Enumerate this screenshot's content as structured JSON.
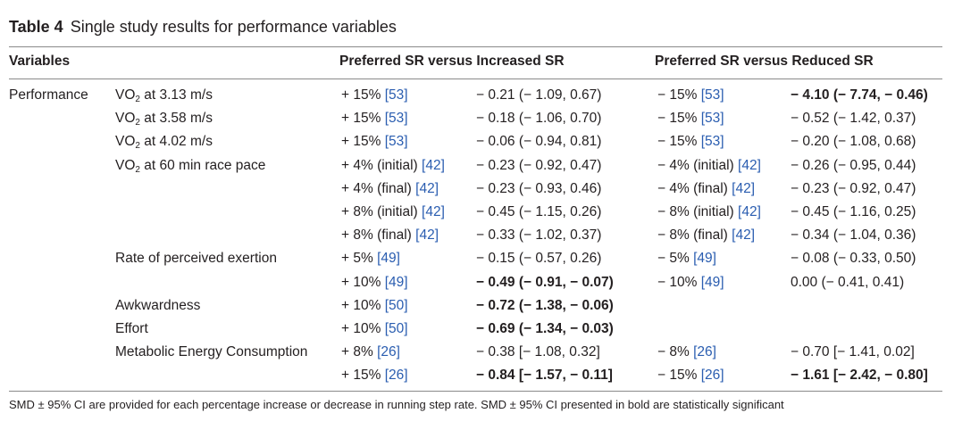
{
  "caption": {
    "label": "Table 4",
    "title": "Single study results for performance variables"
  },
  "headers": {
    "variables": "Variables",
    "group_increased": "Preferred SR versus Increased SR",
    "group_reduced": "Preferred SR versus Reduced SR"
  },
  "category": "Performance",
  "rows": [
    {
      "var_main": "VO",
      "var_sub": "2",
      "var_rest": " at 3.13 m/s",
      "inc_pct": "+ 15% ",
      "inc_ref": "[53]",
      "inc_val": "− 0.21 (− 1.09, 0.67)",
      "inc_bold": false,
      "red_pct": "− 15% ",
      "red_ref": "[53]",
      "red_val": "− 4.10 (− 7.74, − 0.46)",
      "red_bold": true
    },
    {
      "var_main": "VO",
      "var_sub": "2",
      "var_rest": " at 3.58 m/s",
      "inc_pct": "+ 15% ",
      "inc_ref": "[53]",
      "inc_val": "− 0.18 (− 1.06, 0.70)",
      "inc_bold": false,
      "red_pct": "− 15% ",
      "red_ref": "[53]",
      "red_val": "− 0.52 (− 1.42, 0.37)",
      "red_bold": false
    },
    {
      "var_main": "VO",
      "var_sub": "2",
      "var_rest": " at 4.02 m/s",
      "inc_pct": "+ 15% ",
      "inc_ref": "[53]",
      "inc_val": "− 0.06 (− 0.94, 0.81)",
      "inc_bold": false,
      "red_pct": "− 15% ",
      "red_ref": "[53]",
      "red_val": "− 0.20 (− 1.08, 0.68)",
      "red_bold": false
    },
    {
      "var_main": "VO",
      "var_sub": "2",
      "var_rest": " at 60 min race pace",
      "inc_pct": "+ 4% (initial) ",
      "inc_ref": "[42]",
      "inc_val": "− 0.23 (− 0.92, 0.47)",
      "inc_bold": false,
      "red_pct": "− 4% (initial) ",
      "red_ref": "[42]",
      "red_val": "− 0.26 (− 0.95, 0.44)",
      "red_bold": false
    },
    {
      "var_main": "",
      "var_sub": "",
      "var_rest": "",
      "inc_pct": "+ 4% (final) ",
      "inc_ref": "[42]",
      "inc_val": "− 0.23 (− 0.93, 0.46)",
      "inc_bold": false,
      "red_pct": "− 4% (final) ",
      "red_ref": "[42]",
      "red_val": "− 0.23 (− 0.92, 0.47)",
      "red_bold": false
    },
    {
      "var_main": "",
      "var_sub": "",
      "var_rest": "",
      "inc_pct": "+ 8% (initial) ",
      "inc_ref": "[42]",
      "inc_val": "− 0.45 (− 1.15, 0.26)",
      "inc_bold": false,
      "red_pct": "− 8% (initial) ",
      "red_ref": "[42]",
      "red_val": "− 0.45 (− 1.16, 0.25)",
      "red_bold": false
    },
    {
      "var_main": "",
      "var_sub": "",
      "var_rest": "",
      "inc_pct": "+ 8% (final) ",
      "inc_ref": "[42]",
      "inc_val": "− 0.33 (− 1.02, 0.37)",
      "inc_bold": false,
      "red_pct": "− 8% (final) ",
      "red_ref": "[42]",
      "red_val": "− 0.34 (− 1.04, 0.36)",
      "red_bold": false
    },
    {
      "var_main": "Rate of perceived exertion",
      "var_sub": "",
      "var_rest": "",
      "inc_pct": "+ 5% ",
      "inc_ref": "[49]",
      "inc_val": "− 0.15 (− 0.57, 0.26)",
      "inc_bold": false,
      "red_pct": "− 5% ",
      "red_ref": "[49]",
      "red_val": "− 0.08 (− 0.33, 0.50)",
      "red_bold": false
    },
    {
      "var_main": "",
      "var_sub": "",
      "var_rest": "",
      "inc_pct": "+ 10% ",
      "inc_ref": "[49]",
      "inc_val": "− 0.49 (− 0.91, − 0.07)",
      "inc_bold": true,
      "red_pct": "− 10% ",
      "red_ref": "[49]",
      "red_val": "0.00 (− 0.41, 0.41)",
      "red_bold": false
    },
    {
      "var_main": "Awkwardness",
      "var_sub": "",
      "var_rest": "",
      "inc_pct": "+ 10% ",
      "inc_ref": "[50]",
      "inc_val": "− 0.72 (− 1.38, − 0.06)",
      "inc_bold": true,
      "red_pct": "",
      "red_ref": "",
      "red_val": "",
      "red_bold": false
    },
    {
      "var_main": "Effort",
      "var_sub": "",
      "var_rest": "",
      "inc_pct": "+ 10% ",
      "inc_ref": "[50]",
      "inc_val": "− 0.69 (− 1.34, − 0.03)",
      "inc_bold": true,
      "red_pct": "",
      "red_ref": "",
      "red_val": "",
      "red_bold": false
    },
    {
      "var_main": "Metabolic Energy Consumption",
      "var_sub": "",
      "var_rest": "",
      "inc_pct": "+ 8% ",
      "inc_ref": "[26]",
      "inc_val": "− 0.38 [− 1.08, 0.32]",
      "inc_bold": false,
      "red_pct": "− 8% ",
      "red_ref": "[26]",
      "red_val": "− 0.70 [− 1.41, 0.02]",
      "red_bold": false
    },
    {
      "var_main": "",
      "var_sub": "",
      "var_rest": "",
      "inc_pct": "+ 15% ",
      "inc_ref": "[26]",
      "inc_val": "− 0.84 [− 1.57, − 0.11]",
      "inc_bold": true,
      "red_pct": "− 15% ",
      "red_ref": "[26]",
      "red_val": "− 1.61 [− 2.42, − 0.80]",
      "red_bold": true
    }
  ],
  "footnote": "SMD ± 95% CI are provided for each percentage increase or decrease in running step rate. SMD ± 95% CI presented in bold are statistically significant"
}
